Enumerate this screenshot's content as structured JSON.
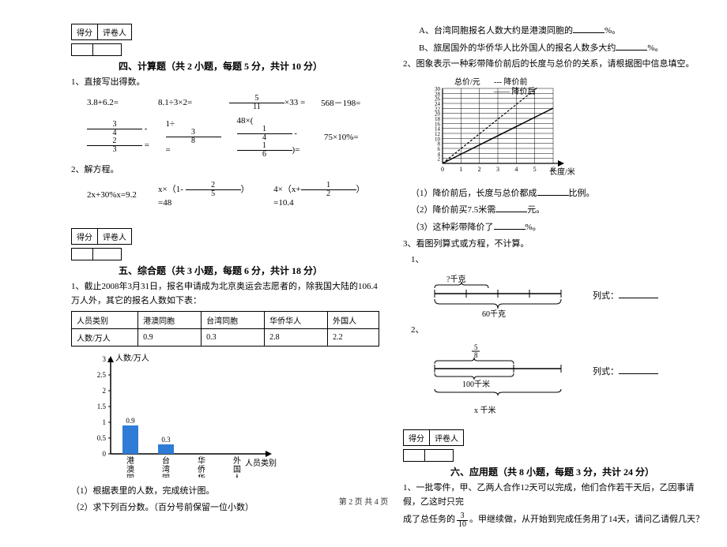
{
  "footer": "第 2 页 共 4 页",
  "score_labels": {
    "score": "得分",
    "reviewer": "评卷人"
  },
  "section4": {
    "title": "四、计算题（共 2 小题，每题 5 分，共计 10 分）",
    "q1": "1、直接写出得数。",
    "row1": {
      "a": "3.8+6.2=",
      "b": "8.1÷3×2=",
      "c_pre": "",
      "c_frac_n": "5",
      "c_frac_d": "11",
      "c_post": "×33 =",
      "d": "568－198="
    },
    "row2": {
      "a_f1n": "3",
      "a_f1d": "4",
      "a_mid": " - ",
      "a_f2n": "2",
      "a_f2d": "3",
      "a_post": " =",
      "b_pre": "1÷",
      "b_fn": "3",
      "b_fd": "8",
      "b_post": " =",
      "c_pre": "48×(",
      "c_f1n": "1",
      "c_f1d": "4",
      "c_mid": " - ",
      "c_f2n": "1",
      "c_f2d": "6",
      "c_post": ")=",
      "d": "75×10%="
    },
    "q2": "2、解方程。",
    "row3": {
      "a": "2x+30%x=9.2",
      "b_pre": "x×（1- ",
      "b_fn": "2",
      "b_fd": "5",
      "b_post": "）=48",
      "c_pre": "4×（x+",
      "c_fn": "1",
      "c_fd": "2",
      "c_post": "）=10.4"
    }
  },
  "section5": {
    "title": "五、综合题（共 3 小题，每题 6 分，共计 18 分）",
    "q1_intro": "1、截止2008年3月31日，报名申请成为北京奥运会志愿者的，除我国大陆的106.4万人外，其它的报名人数如下表：",
    "table": {
      "headers": [
        "人员类别",
        "港澳同胞",
        "台湾同胞",
        "华侨华人",
        "外国人"
      ],
      "row": [
        "人数/万人",
        "0.9",
        "0.3",
        "2.8",
        "2.2"
      ]
    },
    "chart": {
      "y_label": "人数/万人",
      "x_label": "人员类别",
      "y_ticks": [
        "0",
        "0.5",
        "1",
        "1.5",
        "2",
        "2.5",
        "3"
      ],
      "categories": [
        "港澳同胞",
        "台湾同胞",
        "华侨华人",
        "外国人"
      ],
      "values": [
        0.9,
        0.3,
        null,
        null
      ],
      "bar_color": "#2e7cd6",
      "y_max": 3
    },
    "q1_sub1": "（1）根据表里的人数，完成统计图。",
    "q1_sub2": "（2）求下列百分数。（百分号前保留一位小数）",
    "q1_subA_pre": "A、台湾同胞报名人数大约是港澳同胞的",
    "q1_subA_post": "%。",
    "q1_subB_pre": "B、旅居国外的华侨华人比外国人的报名人数多大约",
    "q1_subB_post": "%。",
    "q2_intro": "2、图象表示一种彩带降价前后的长度与总价的关系，请根据图中信息填空。",
    "line_chart": {
      "x_label": "长度/米",
      "y_label": "总价/元",
      "legend_before": "--- 降价前",
      "legend_after": "—— 降价后",
      "x_ticks": [
        "0",
        "1",
        "2",
        "3",
        "4",
        "5",
        "6"
      ],
      "y_ticks": [
        "2",
        "4",
        "6",
        "8",
        "10",
        "12",
        "14",
        "16",
        "18",
        "20",
        "22",
        "24",
        "26",
        "28",
        "30"
      ],
      "grid_color": "#000000"
    },
    "q2_sub1_pre": "（1）降价前后，长度与总价都成",
    "q2_sub1_post": "比例。",
    "q2_sub2_pre": "（2）降价前买7.5米需",
    "q2_sub2_post": "元。",
    "q2_sub3_pre": "（3）这种彩带降价了",
    "q2_sub3_post": "%。",
    "q3_title": "3、看图列算式或方程，不计算。",
    "q3_1": "1、",
    "q3_1_top": "?千克",
    "q3_1_bottom": "60千克",
    "q3_1_formula": "列式：",
    "q3_2": "2、",
    "q3_2_fracn": "5",
    "q3_2_fracd": "8",
    "q3_2_mid": "100千米",
    "q3_2_bottom": "x 千米",
    "q3_2_formula": "列式："
  },
  "section6": {
    "title": "六、应用题（共 8 小题，每题 3 分，共计 24 分）",
    "q1_l1": "1、一批零件，甲、乙两人合作12天可以完成，他们合作若干天后，乙因事请假，乙这时只完",
    "q1_frac_n": "3",
    "q1_frac_d": "10",
    "q1_l2_pre": "成了总任务的",
    "q1_l2_post": "。甲继续做，从开始到完成任务用了14天，请问乙请假几天？"
  }
}
